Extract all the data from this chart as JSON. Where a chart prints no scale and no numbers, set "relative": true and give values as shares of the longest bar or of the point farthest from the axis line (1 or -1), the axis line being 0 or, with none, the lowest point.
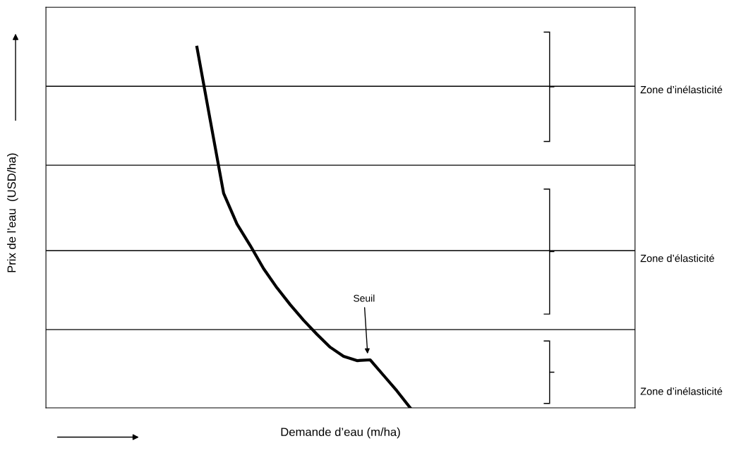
{
  "chart_data": {
    "type": "line",
    "relative": true,
    "xlabel": "Demande d’eau (m/ha)",
    "categories": [
      null,
      null,
      null,
      null,
      null,
      null,
      null,
      null,
      null,
      null,
      null,
      null,
      null,
      null,
      null,
      null,
      null
    ],
    "series": [
      {
        "color": "#000000",
        "values": [
          1,
          0.797,
          0.595,
          0.51,
          0.45,
          0.386,
          0.333,
          0.286,
          0.243,
          0.204,
          0.168,
          0.143,
          0.131,
          0.133,
          0.09,
          0.047,
          0
        ]
      }
    ],
    "ref_lines": [
      {
        "axis": "y",
        "value": 0.892,
        "color": "#000000"
      },
      {
        "axis": "y",
        "value": 0.673,
        "color": "#000000"
      },
      {
        "axis": "y",
        "value": 0.436,
        "color": "#000000"
      },
      {
        "axis": "y",
        "value": 0.217,
        "color": "#000000"
      }
    ],
    "annotations": [
      "Seuil",
      "Zone d’inélasticité",
      "Zone d’élasticité",
      "Zone d’inélasticité",
      "Prix de l’eau  (USD/ha)"
    ],
    "marker": "none",
    "line_style": "solid"
  }
}
